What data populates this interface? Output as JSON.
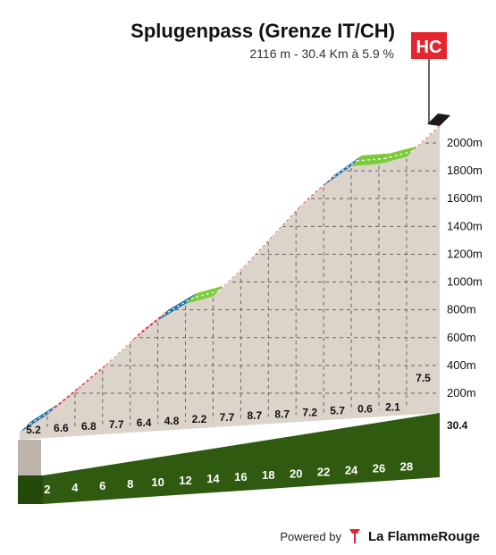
{
  "header": {
    "title": "Splugenpass (Grenze IT/CH)",
    "subtitle": "2116 m - 30.4 Km à 5.9 %"
  },
  "badge": {
    "label": "HC",
    "color": "#e3262f"
  },
  "colors": {
    "grade_0_3": "#7ccb3a",
    "grade_3_6": "#1d6fa0",
    "grade_6_9": "#e0263a",
    "grade_9_plus": "#1a1a1a",
    "terrain": "#dcd4cb",
    "base": "#2f5a10"
  },
  "chart_data": {
    "type": "area",
    "x_unit": "km",
    "y_unit": "m",
    "distance_label": "30.4",
    "ylim": [
      0,
      2116
    ],
    "y_ticks": [
      200,
      400,
      600,
      800,
      1000,
      1200,
      1400,
      1600,
      1800,
      2000
    ],
    "y_tick_labels": [
      "200m",
      "400m",
      "600m",
      "800m",
      "1000m",
      "1200m",
      "1400m",
      "1600m",
      "1800m",
      "2000m"
    ],
    "x_ticks": [
      2,
      4,
      6,
      8,
      10,
      12,
      14,
      16,
      18,
      20,
      22,
      24,
      26,
      28
    ],
    "segments": [
      {
        "from": 0,
        "to": 2,
        "grade": "5.2"
      },
      {
        "from": 2,
        "to": 4,
        "grade": "6.6"
      },
      {
        "from": 4,
        "to": 6,
        "grade": "6.8"
      },
      {
        "from": 6,
        "to": 8,
        "grade": "7.7"
      },
      {
        "from": 8,
        "to": 10,
        "grade": "6.4"
      },
      {
        "from": 10,
        "to": 12,
        "grade": "4.8"
      },
      {
        "from": 12,
        "to": 14,
        "grade": "2.2"
      },
      {
        "from": 14,
        "to": 16,
        "grade": "7.7"
      },
      {
        "from": 16,
        "to": 18,
        "grade": "8.7"
      },
      {
        "from": 18,
        "to": 20,
        "grade": "8.7"
      },
      {
        "from": 20,
        "to": 22,
        "grade": "7.2"
      },
      {
        "from": 22,
        "to": 24,
        "grade": "5.7"
      },
      {
        "from": 24,
        "to": 26,
        "grade": "0.6"
      },
      {
        "from": 26,
        "to": 28,
        "grade": "2.1"
      },
      {
        "from": 28,
        "to": 30.4,
        "grade": "7.5"
      }
    ]
  },
  "footer": {
    "powered_by": "Powered by",
    "brand": "La FlammeRouge"
  }
}
